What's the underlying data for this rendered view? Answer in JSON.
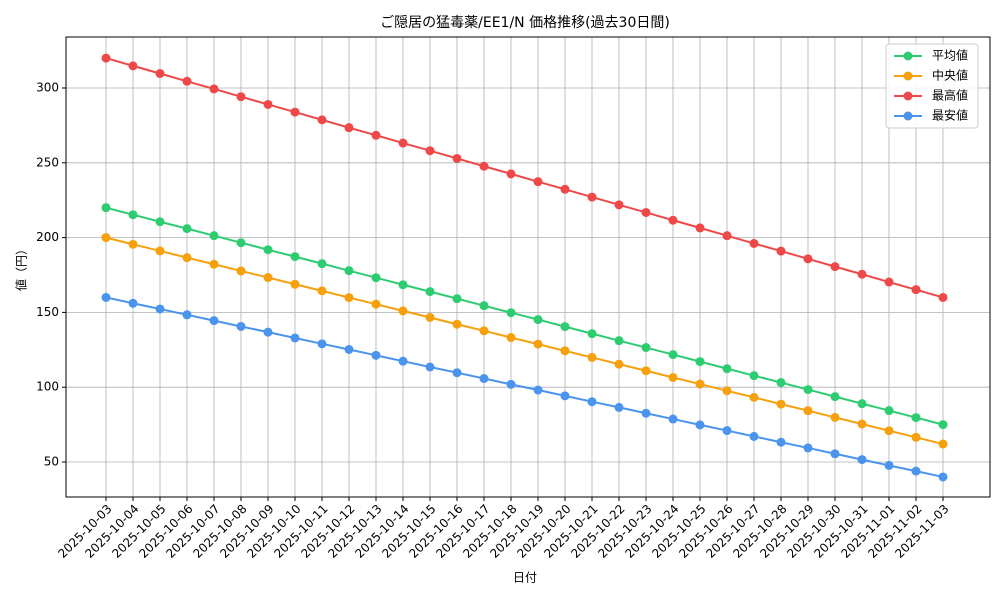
{
  "chart_data": {
    "type": "line",
    "title": "ご隠居の猛毒薬/EE1/N 価格推移(過去30日間)",
    "x_label": "日付",
    "y_label": "値（円）",
    "categories": [
      "2025-10-03",
      "2025-10-04",
      "2025-10-05",
      "2025-10-06",
      "2025-10-07",
      "2025-10-08",
      "2025-10-09",
      "2025-10-10",
      "2025-10-11",
      "2025-10-12",
      "2025-10-13",
      "2025-10-14",
      "2025-10-15",
      "2025-10-16",
      "2025-10-17",
      "2025-10-18",
      "2025-10-19",
      "2025-10-20",
      "2025-10-21",
      "2025-10-22",
      "2025-10-23",
      "2025-10-24",
      "2025-10-25",
      "2025-10-26",
      "2025-10-27",
      "2025-10-28",
      "2025-10-29",
      "2025-10-30",
      "2025-10-31",
      "2025-11-01",
      "2025-11-02",
      "2025-11-03"
    ],
    "series": [
      {
        "name": "平均値",
        "color": "#2ecc71",
        "values": [
          220,
          215.3,
          210.6,
          206.0,
          201.3,
          196.6,
          191.9,
          187.3,
          182.6,
          177.9,
          173.2,
          168.5,
          163.9,
          159.2,
          154.5,
          149.8,
          145.2,
          140.5,
          135.8,
          131.1,
          126.5,
          121.8,
          117.1,
          112.4,
          107.7,
          103.1,
          98.4,
          93.7,
          89.0,
          84.4,
          79.7,
          75.0
        ]
      },
      {
        "name": "中央値",
        "color": "#f5a00c",
        "values": [
          200,
          195.5,
          191.1,
          186.6,
          182.2,
          177.7,
          173.3,
          168.8,
          164.4,
          159.9,
          155.5,
          151.0,
          146.6,
          142.1,
          137.7,
          133.2,
          128.8,
          124.3,
          119.9,
          115.4,
          111.0,
          106.5,
          102.1,
          97.6,
          93.2,
          88.7,
          84.3,
          79.8,
          75.4,
          70.9,
          66.5,
          62.0
        ]
      },
      {
        "name": "最高値",
        "color": "#ef4848",
        "values": [
          320,
          314.8,
          309.7,
          304.5,
          299.4,
          294.2,
          289.0,
          283.9,
          278.7,
          273.5,
          268.4,
          263.2,
          258.1,
          252.9,
          247.7,
          242.6,
          237.4,
          232.3,
          227.1,
          221.9,
          216.8,
          211.6,
          206.5,
          201.3,
          196.1,
          191.0,
          185.8,
          180.6,
          175.5,
          170.3,
          165.2,
          160.0
        ]
      },
      {
        "name": "最安値",
        "color": "#4a94ee",
        "values": [
          160,
          156.1,
          152.3,
          148.4,
          144.5,
          140.6,
          136.8,
          132.9,
          129.0,
          125.2,
          121.3,
          117.4,
          113.5,
          109.7,
          105.8,
          101.9,
          98.1,
          94.2,
          90.3,
          86.5,
          82.6,
          78.7,
          74.8,
          71.0,
          67.1,
          63.2,
          59.4,
          55.5,
          51.6,
          47.7,
          43.9,
          40.0
        ]
      }
    ],
    "ylim": [
      26.6,
      334.1
    ],
    "yticks": [
      50,
      100,
      150,
      200,
      250,
      300
    ],
    "grid": true,
    "legend": "upper right"
  }
}
